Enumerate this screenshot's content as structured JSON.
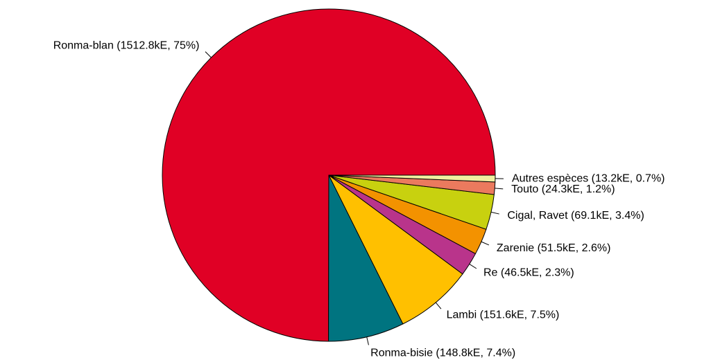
{
  "chart_data": {
    "type": "pie",
    "values": [
      1512.8,
      148.8,
      151.6,
      46.5,
      51.5,
      69.1,
      24.3,
      13.2
    ],
    "value_labels": [
      "Ronma-blan (1512.8kE, 75%)",
      "Ronma-bisie (148.8kE, 7.4%)",
      "Lambi (151.6kE, 7.5%)",
      "Re (46.5kE, 2.3%)",
      "Zarenie (51.5kE, 2.6%)",
      "Cigal, Ravet (69.1kE, 3.4%)",
      "Touto (24.3kE, 1.2%)",
      "Autres espèces (13.2kE, 0.7%)"
    ],
    "colors": [
      "#e00025",
      "#007480",
      "#ffc000",
      "#b9348b",
      "#f39200",
      "#c8d10f",
      "#eb7a5e",
      "#f0f0a0"
    ]
  }
}
